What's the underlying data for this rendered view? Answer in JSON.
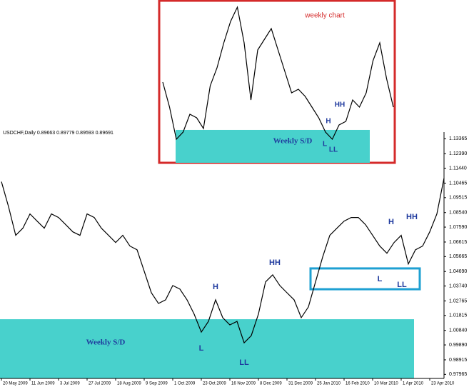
{
  "chart_data": [
    {
      "type": "line",
      "title": "USDCHF,Daily 0.89663 0.89779 0.89593 0.89691",
      "color": "#000000",
      "categories": [
        "20 May 2009",
        null,
        null,
        null,
        "11 Jun 2009",
        null,
        null,
        null,
        "3 Jul 2009",
        null,
        null,
        null,
        "27 Jul 2009",
        null,
        null,
        null,
        "18 Aug 2009",
        null,
        null,
        null,
        "9 Sep 2009",
        null,
        null,
        null,
        "1 Oct 2009",
        null,
        null,
        null,
        "23 Oct 2009",
        null,
        null,
        null,
        "16 Nov 2009",
        null,
        null,
        null,
        "8 Dec 2009",
        null,
        null,
        null,
        "31 Dec 2009",
        null,
        null,
        null,
        "25 Jan 2010",
        null,
        null,
        null,
        "16 Feb 2010",
        null,
        null,
        null,
        "10 Mar 2010",
        null,
        null,
        null,
        "1 Apr 2010",
        null,
        null,
        null,
        "23 Apr 2010",
        null,
        null
      ],
      "values": [
        1.1056,
        1.0892,
        1.0705,
        1.0752,
        1.0845,
        1.0798,
        1.0752,
        1.0845,
        1.0822,
        1.0775,
        1.0728,
        1.0705,
        1.0845,
        1.0822,
        1.0752,
        1.0705,
        1.0658,
        1.0705,
        1.0635,
        1.0611,
        1.0471,
        1.033,
        1.026,
        1.0284,
        1.0377,
        1.0354,
        1.0284,
        1.019,
        1.0073,
        1.0143,
        1.0284,
        1.0167,
        1.012,
        1.0143,
        1.0003,
        1.005,
        1.019,
        1.0401,
        1.0447,
        1.0377,
        1.033,
        1.0284,
        1.0167,
        1.0237,
        1.0401,
        1.0564,
        1.0705,
        1.0752,
        1.0798,
        1.0822,
        1.0822,
        1.0775,
        1.0705,
        1.0635,
        1.0588,
        1.0658,
        1.0705,
        1.0518,
        1.0611,
        1.0635,
        1.0728,
        1.0845,
        1.1079
      ],
      "ylim": [
        0.977,
        1.138
      ],
      "yticks": [
        {
          "value": 1.13365,
          "label": "1.13365"
        },
        {
          "value": 1.1239,
          "label": "1.12390"
        },
        {
          "value": 1.1144,
          "label": "1.11440"
        },
        {
          "value": 1.10465,
          "label": "1.10465"
        },
        {
          "value": 1.09515,
          "label": "1.09515"
        },
        {
          "value": 1.0854,
          "label": "1.08540"
        },
        {
          "value": 1.0759,
          "label": "1.07590"
        },
        {
          "value": 1.06615,
          "label": "1.06615"
        },
        {
          "value": 1.05665,
          "label": "1.05665"
        },
        {
          "value": 1.0469,
          "label": "1.04690"
        },
        {
          "value": 1.0374,
          "label": "1.03740"
        },
        {
          "value": 1.02765,
          "label": "1.02765"
        },
        {
          "value": 1.01815,
          "label": "1.01815"
        },
        {
          "value": 1.0084,
          "label": "1.00840"
        },
        {
          "value": 0.9989,
          "label": "0.99890"
        },
        {
          "value": 0.98915,
          "label": "0.98915"
        },
        {
          "value": 0.97965,
          "label": "0.97965"
        }
      ],
      "zones": [
        {
          "label": "Weekly S/D",
          "color": "#48d1cc",
          "from": 0.977,
          "to": 1.0157
        },
        {
          "color": "#1ea0d2",
          "outline": true,
          "from": 1.0353,
          "to": 1.0489
        }
      ],
      "annotations": [
        "H",
        "HH",
        "L",
        "LL",
        "H",
        "HH",
        "L",
        "LL"
      ]
    },
    {
      "type": "line",
      "title": "weekly chart",
      "color": "#000000",
      "categories": [
        null,
        null,
        null,
        null,
        null,
        null,
        null,
        null,
        null,
        null,
        null,
        null,
        null,
        null,
        null,
        null,
        null,
        null,
        null,
        null,
        null,
        null,
        null,
        null,
        null,
        null,
        null,
        null,
        null,
        null,
        null,
        null,
        null,
        null,
        null
      ],
      "values": [
        1.1089,
        1.0689,
        1.0176,
        1.029,
        1.0575,
        1.0518,
        1.0347,
        1.1031,
        1.1317,
        1.1716,
        1.2058,
        1.2286,
        1.1716,
        1.0803,
        1.1602,
        1.1773,
        1.1944,
        1.1602,
        1.126,
        1.0918,
        1.0975,
        1.086,
        1.0689,
        1.0518,
        1.029,
        1.0176,
        1.0404,
        1.0461,
        1.0803,
        1.0689,
        1.0918,
        1.1431,
        1.1716,
        1.1146,
        1.0689
      ],
      "ylim": [
        0.98,
        1.24
      ],
      "zones": [
        {
          "label": "Weekly S/D",
          "color": "#48d1cc",
          "from": 0.98,
          "to": 1.0325
        }
      ],
      "annotations": [
        "H",
        "HH",
        "L",
        "LL"
      ]
    }
  ]
}
